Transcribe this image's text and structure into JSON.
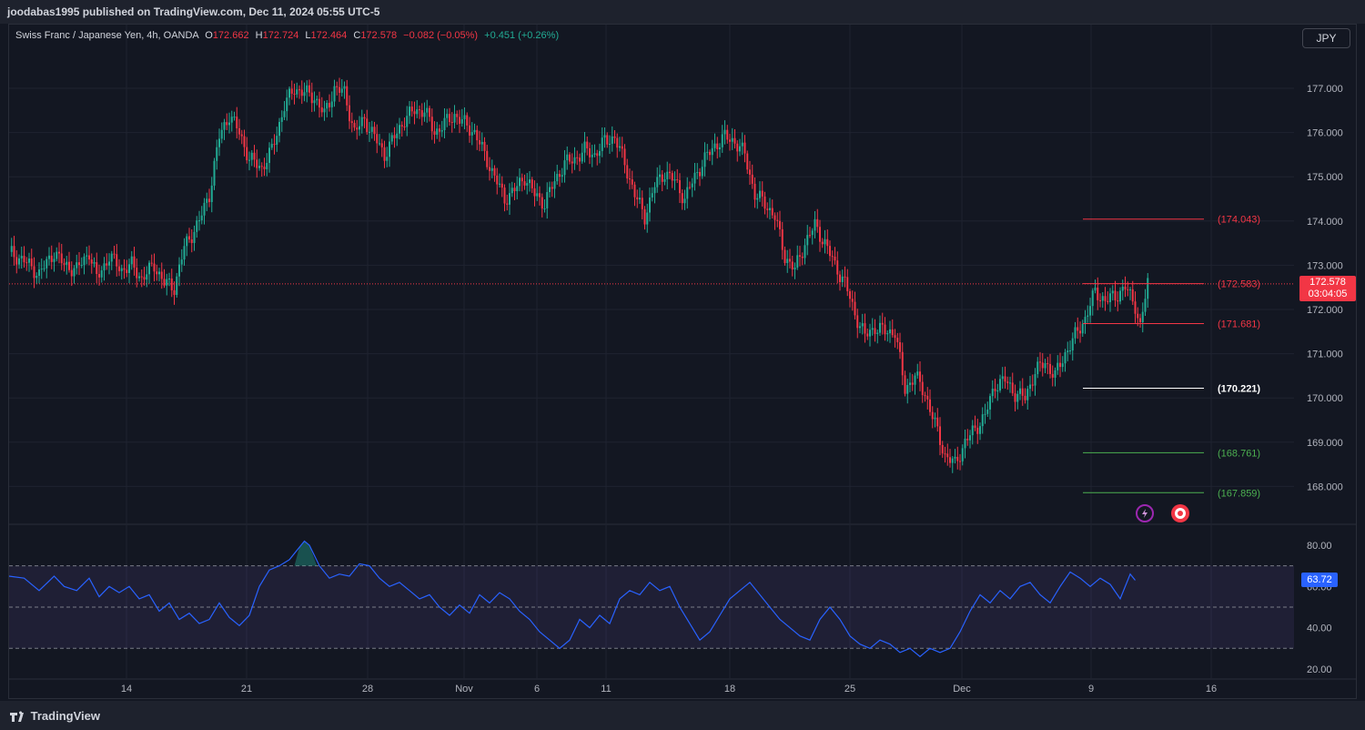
{
  "header": {
    "publisher": "joodabas1995 published on TradingView.com, Dec 11, 2024 05:55 UTC-5"
  },
  "legend": {
    "symbol": "Swiss Franc / Japanese Yen, 4h, OANDA",
    "o_label": "O",
    "o_value": "172.662",
    "h_label": "H",
    "h_value": "172.724",
    "l_label": "L",
    "l_value": "172.464",
    "c_label": "C",
    "c_value": "172.578",
    "change": "−0.082 (−0.05%)",
    "change2": "+0.451 (+0.26%)"
  },
  "currency_button": "JPY",
  "current_price": {
    "value": "172.578",
    "countdown": "03:04:05"
  },
  "rsi_value": "63.72",
  "footer": {
    "brand": "TradingView"
  },
  "colors": {
    "up": "#22ab94",
    "down": "#f23645",
    "rsi": "#2962ff",
    "bg": "#131722",
    "grid": "#1f2330"
  },
  "chart_data": [
    {
      "type": "candlestick",
      "title": "Swiss Franc / Japanese Yen, 4h, OANDA",
      "y_ticks": [
        "177.000",
        "176.000",
        "175.000",
        "174.000",
        "173.000",
        "172.000",
        "171.000",
        "170.000",
        "169.000",
        "168.000"
      ],
      "y_tick_values": [
        177,
        176,
        175,
        174,
        173,
        172,
        171,
        170,
        169,
        168
      ],
      "x_ticks": [
        "14",
        "21",
        "28",
        "Nov",
        "6",
        "11",
        "18",
        "25",
        "Dec",
        "9",
        "16"
      ],
      "current_price": 172.578,
      "close_path": [
        [
          0,
          173.3
        ],
        [
          6,
          173.1
        ],
        [
          12,
          172.8
        ],
        [
          18,
          173.3
        ],
        [
          22,
          173.0
        ],
        [
          27,
          172.9
        ],
        [
          32,
          173.3
        ],
        [
          35,
          172.7
        ],
        [
          40,
          173.2
        ],
        [
          45,
          172.9
        ],
        [
          49,
          173.0
        ],
        [
          53,
          172.7
        ],
        [
          58,
          173.0
        ],
        [
          62,
          172.6
        ],
        [
          66,
          172.5
        ],
        [
          70,
          173.4
        ],
        [
          76,
          174.0
        ],
        [
          80,
          174.6
        ],
        [
          84,
          175.9
        ],
        [
          88,
          176.4
        ],
        [
          92,
          176.0
        ],
        [
          96,
          175.4
        ],
        [
          101,
          175.2
        ],
        [
          105,
          175.6
        ],
        [
          110,
          176.6
        ],
        [
          114,
          177.0
        ],
        [
          118,
          176.9
        ],
        [
          122,
          176.8
        ],
        [
          126,
          176.4
        ],
        [
          130,
          177.0
        ],
        [
          134,
          176.9
        ],
        [
          138,
          176.0
        ],
        [
          142,
          176.3
        ],
        [
          146,
          175.9
        ],
        [
          150,
          175.5
        ],
        [
          154,
          175.9
        ],
        [
          158,
          176.3
        ],
        [
          162,
          176.5
        ],
        [
          166,
          176.5
        ],
        [
          170,
          176.0
        ],
        [
          174,
          176.2
        ],
        [
          178,
          176.4
        ],
        [
          182,
          176.2
        ],
        [
          186,
          176.0
        ],
        [
          190,
          175.5
        ],
        [
          194,
          175.0
        ],
        [
          198,
          174.5
        ],
        [
          202,
          174.7
        ],
        [
          206,
          175.0
        ],
        [
          210,
          174.6
        ],
        [
          214,
          174.4
        ],
        [
          218,
          174.9
        ],
        [
          222,
          175.3
        ],
        [
          226,
          175.4
        ],
        [
          230,
          175.6
        ],
        [
          234,
          175.5
        ],
        [
          238,
          175.8
        ],
        [
          242,
          175.9
        ],
        [
          246,
          175.3
        ],
        [
          250,
          174.6
        ],
        [
          254,
          174.1
        ],
        [
          258,
          174.8
        ],
        [
          262,
          175.1
        ],
        [
          266,
          174.9
        ],
        [
          270,
          174.5
        ],
        [
          274,
          175.0
        ],
        [
          278,
          175.4
        ],
        [
          282,
          175.7
        ],
        [
          286,
          175.9
        ],
        [
          290,
          175.8
        ],
        [
          294,
          175.5
        ],
        [
          298,
          174.6
        ],
        [
          302,
          174.4
        ],
        [
          306,
          174.1
        ],
        [
          310,
          173.2
        ],
        [
          314,
          172.9
        ],
        [
          318,
          173.5
        ],
        [
          322,
          173.9
        ],
        [
          326,
          173.5
        ],
        [
          330,
          173.0
        ],
        [
          334,
          172.6
        ],
        [
          338,
          171.9
        ],
        [
          342,
          171.4
        ],
        [
          346,
          171.6
        ],
        [
          350,
          171.5
        ],
        [
          354,
          171.5
        ],
        [
          358,
          170.2
        ],
        [
          362,
          170.5
        ],
        [
          366,
          170.1
        ],
        [
          370,
          169.4
        ],
        [
          374,
          168.7
        ],
        [
          378,
          168.5
        ],
        [
          382,
          169.0
        ],
        [
          386,
          169.3
        ],
        [
          390,
          169.6
        ],
        [
          394,
          170.3
        ],
        [
          398,
          170.4
        ],
        [
          402,
          170.1
        ],
        [
          406,
          170.0
        ],
        [
          410,
          170.6
        ],
        [
          414,
          170.8
        ],
        [
          418,
          170.5
        ],
        [
          422,
          171.0
        ],
        [
          426,
          171.4
        ],
        [
          430,
          171.8
        ],
        [
          434,
          172.4
        ],
        [
          438,
          172.2
        ],
        [
          442,
          172.3
        ],
        [
          446,
          172.5
        ],
        [
          450,
          172.1
        ],
        [
          452,
          171.6
        ],
        [
          455,
          172.6
        ]
      ],
      "levels": [
        {
          "value": 174.043,
          "label": "(174.043)",
          "color": "#f23645"
        },
        {
          "value": 172.583,
          "label": "(172.583)",
          "color": "#f23645"
        },
        {
          "value": 171.681,
          "label": "(171.681)",
          "color": "#f23645"
        },
        {
          "value": 170.221,
          "label": "(170.221)",
          "color": "#ffffff"
        },
        {
          "value": 168.761,
          "label": "(168.761)",
          "color": "#4caf50"
        },
        {
          "value": 167.859,
          "label": "(167.859)",
          "color": "#4caf50"
        }
      ]
    },
    {
      "type": "line",
      "title": "RSI",
      "y_ticks": [
        "80.00",
        "60.00",
        "40.00",
        "20.00"
      ],
      "y_tick_values": [
        80,
        60,
        40,
        20
      ],
      "band": [
        30,
        70
      ],
      "midline": 50,
      "current_value": 63.72,
      "series": [
        {
          "values": [
            [
              0,
              65
            ],
            [
              6,
              64
            ],
            [
              12,
              58
            ],
            [
              18,
              65
            ],
            [
              22,
              60
            ],
            [
              27,
              58
            ],
            [
              32,
              64
            ],
            [
              36,
              55
            ],
            [
              40,
              60
            ],
            [
              44,
              57
            ],
            [
              48,
              60
            ],
            [
              52,
              54
            ],
            [
              56,
              56
            ],
            [
              60,
              48
            ],
            [
              64,
              52
            ],
            [
              68,
              44
            ],
            [
              72,
              47
            ],
            [
              76,
              42
            ],
            [
              80,
              44
            ],
            [
              84,
              52
            ],
            [
              88,
              45
            ],
            [
              92,
              41
            ],
            [
              96,
              46
            ],
            [
              100,
              60
            ],
            [
              104,
              68
            ],
            [
              108,
              70
            ],
            [
              112,
              73
            ],
            [
              116,
              79
            ],
            [
              118,
              82
            ],
            [
              120,
              80
            ],
            [
              124,
              70
            ],
            [
              128,
              64
            ],
            [
              132,
              66
            ],
            [
              136,
              65
            ],
            [
              140,
              71
            ],
            [
              144,
              70
            ],
            [
              148,
              64
            ],
            [
              152,
              60
            ],
            [
              156,
              62
            ],
            [
              160,
              58
            ],
            [
              164,
              54
            ],
            [
              168,
              56
            ],
            [
              172,
              50
            ],
            [
              176,
              46
            ],
            [
              180,
              51
            ],
            [
              184,
              47
            ],
            [
              188,
              56
            ],
            [
              192,
              52
            ],
            [
              196,
              57
            ],
            [
              200,
              54
            ],
            [
              204,
              48
            ],
            [
              208,
              44
            ],
            [
              212,
              38
            ],
            [
              216,
              34
            ],
            [
              220,
              30
            ],
            [
              224,
              34
            ],
            [
              228,
              44
            ],
            [
              232,
              40
            ],
            [
              236,
              46
            ],
            [
              240,
              42
            ],
            [
              244,
              54
            ],
            [
              248,
              58
            ],
            [
              252,
              56
            ],
            [
              256,
              62
            ],
            [
              260,
              58
            ],
            [
              264,
              60
            ],
            [
              268,
              50
            ],
            [
              272,
              42
            ],
            [
              276,
              34
            ],
            [
              280,
              38
            ],
            [
              284,
              46
            ],
            [
              288,
              54
            ],
            [
              292,
              58
            ],
            [
              296,
              62
            ],
            [
              300,
              56
            ],
            [
              304,
              50
            ],
            [
              308,
              44
            ],
            [
              312,
              40
            ],
            [
              316,
              36
            ],
            [
              320,
              34
            ],
            [
              324,
              44
            ],
            [
              328,
              50
            ],
            [
              332,
              44
            ],
            [
              336,
              36
            ],
            [
              340,
              32
            ],
            [
              344,
              30
            ],
            [
              348,
              34
            ],
            [
              352,
              32
            ],
            [
              356,
              28
            ],
            [
              360,
              30
            ],
            [
              364,
              26
            ],
            [
              368,
              30
            ],
            [
              372,
              28
            ],
            [
              376,
              30
            ],
            [
              380,
              38
            ],
            [
              384,
              48
            ],
            [
              388,
              56
            ],
            [
              392,
              52
            ],
            [
              396,
              58
            ],
            [
              400,
              54
            ],
            [
              404,
              60
            ],
            [
              408,
              62
            ],
            [
              412,
              56
            ],
            [
              416,
              52
            ],
            [
              420,
              60
            ],
            [
              424,
              67
            ],
            [
              428,
              64
            ],
            [
              432,
              60
            ],
            [
              436,
              64
            ],
            [
              440,
              61
            ],
            [
              444,
              54
            ],
            [
              448,
              66
            ],
            [
              450,
              63
            ]
          ]
        }
      ]
    }
  ]
}
